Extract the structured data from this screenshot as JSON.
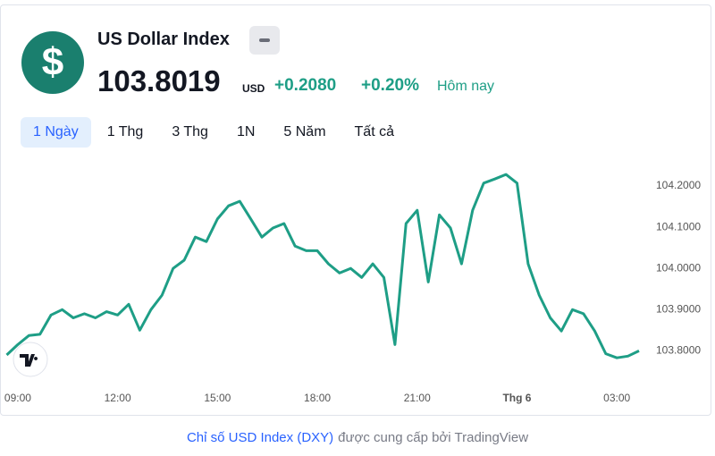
{
  "header": {
    "title": "US Dollar Index",
    "price": "103.8019",
    "currency": "USD",
    "change": "+0.2080",
    "change_percent": "+0.20%",
    "period": "Hôm nay"
  },
  "tabs": [
    "1 Ngày",
    "1 Thg",
    "3 Thg",
    "1N",
    "5 Năm",
    "Tất cả"
  ],
  "chart_data": {
    "type": "line",
    "color": "#1e9e86",
    "categories": [
      null,
      "09:00",
      null,
      null,
      null,
      null,
      null,
      null,
      null,
      null,
      "12:00",
      null,
      null,
      null,
      null,
      null,
      null,
      null,
      null,
      "15:00",
      null,
      null,
      null,
      null,
      null,
      null,
      null,
      null,
      "18:00",
      null,
      null,
      null,
      null,
      null,
      null,
      null,
      null,
      "21:00",
      null,
      null,
      null,
      null,
      null,
      null,
      null,
      null,
      "Thg 6",
      null,
      null,
      null,
      null,
      null,
      null,
      null,
      null,
      "03:00",
      null,
      null
    ],
    "values": [
      103.79,
      103.815,
      103.837,
      103.84,
      103.887,
      103.9,
      103.88,
      103.89,
      103.88,
      103.895,
      103.887,
      103.913,
      103.85,
      103.9,
      103.935,
      104.0,
      104.02,
      104.076,
      104.065,
      104.12,
      104.152,
      104.163,
      104.12,
      104.076,
      104.098,
      104.109,
      104.054,
      104.043,
      104.043,
      104.011,
      103.989,
      104.0,
      103.978,
      104.011,
      103.978,
      103.815,
      104.109,
      104.141,
      103.967,
      104.13,
      104.098,
      104.011,
      104.141,
      104.207,
      104.217,
      104.228,
      104.207,
      104.011,
      103.935,
      103.88,
      103.848,
      103.9,
      103.89,
      103.848,
      103.793,
      103.783,
      103.787,
      103.8
    ],
    "ylim": [
      103.74,
      104.25
    ],
    "yticks": [
      {
        "value": 103.8,
        "label": "103.8000"
      },
      {
        "value": 103.9,
        "label": "103.9000"
      },
      {
        "value": 104.0,
        "label": "104.0000"
      },
      {
        "value": 104.1,
        "label": "104.1000"
      },
      {
        "value": 104.2,
        "label": "104.2000"
      }
    ],
    "grid": false
  },
  "footer": {
    "source_link": "Chỉ số USD Index (DXY)",
    "source_text": "được cung cấp bởi TradingView"
  }
}
